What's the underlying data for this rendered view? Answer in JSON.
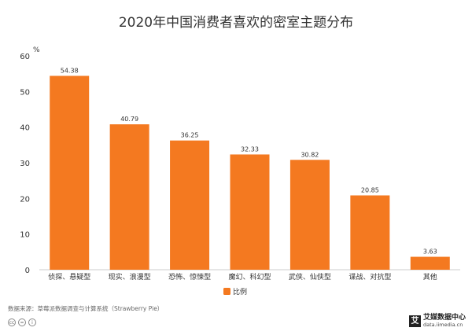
{
  "chart_data": {
    "type": "bar",
    "title": "2020年中国消费者喜欢的密室主题分布",
    "ylabel": "%",
    "ylim": [
      0,
      60
    ],
    "yticks": [
      0,
      10,
      20,
      30,
      40,
      50,
      60
    ],
    "grid": false,
    "legend": "bottom-center",
    "categories": [
      "侦探、悬疑型",
      "现实、浪漫型",
      "恐怖、惊悚型",
      "魔幻、科幻型",
      "武侠、仙侠型",
      "谍战、对抗型",
      "其他"
    ],
    "series": [
      {
        "name": "比例",
        "color": "#f47920",
        "values": [
          54.38,
          40.79,
          36.25,
          32.33,
          30.82,
          20.85,
          3.63
        ],
        "value_labels": [
          "54.38",
          "40.79",
          "36.25",
          "32.33",
          "30.82",
          "20.85",
          "3.63"
        ]
      }
    ]
  },
  "footer": {
    "source": "数据来源：草莓派数据调查与计算系统（Strawberry Pie）",
    "cc_icons": [
      "cc-icon",
      "equals-icon",
      "person-icon"
    ],
    "brand_name": "艾媒数据中心",
    "brand_url": "data.iimedia.cn",
    "brand_icon": "iimedia-logo-icon"
  }
}
